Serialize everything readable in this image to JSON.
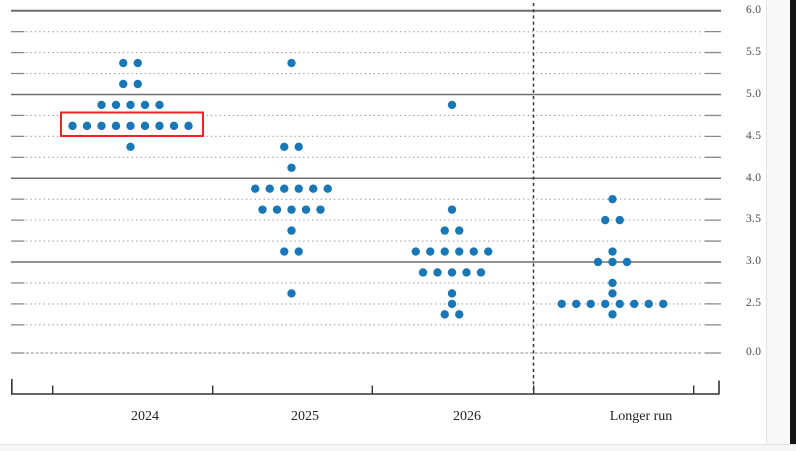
{
  "chart_data": {
    "type": "scatter",
    "subtype": "dot-plot",
    "title": "",
    "x_categories": [
      "2024",
      "2025",
      "2026",
      "Longer run"
    ],
    "y_axis": {
      "tick_labels": [
        "6.0",
        "5.5",
        "5.0",
        "4.5",
        "4.0",
        "3.5",
        "3.0",
        "2.5",
        "0.0"
      ],
      "tick_values": [
        6.0,
        5.5,
        5.0,
        4.5,
        4.0,
        3.5,
        3.0,
        2.5,
        0.0
      ],
      "gridline_top": 6.0,
      "gridline_bottom": 2.25,
      "gridline_step": 0.25,
      "solid_gridlines_at": [
        6.0,
        5.0,
        4.0,
        3.0
      ],
      "broken_axis_extra_line": 0.0,
      "grid": "on",
      "labels_position": "right"
    },
    "columns": [
      {
        "label": "2024",
        "total_dots": 19,
        "dots": [
          {
            "rate": 5.375,
            "count": 2
          },
          {
            "rate": 5.125,
            "count": 2
          },
          {
            "rate": 4.875,
            "count": 5
          },
          {
            "rate": 4.625,
            "count": 9
          },
          {
            "rate": 4.375,
            "count": 1
          }
        ]
      },
      {
        "label": "2025",
        "total_dots": 19,
        "dots": [
          {
            "rate": 5.375,
            "count": 1
          },
          {
            "rate": 4.375,
            "count": 2
          },
          {
            "rate": 4.125,
            "count": 1
          },
          {
            "rate": 3.875,
            "count": 6
          },
          {
            "rate": 3.625,
            "count": 5
          },
          {
            "rate": 3.375,
            "count": 1
          },
          {
            "rate": 3.125,
            "count": 2
          },
          {
            "rate": 2.625,
            "count": 1
          }
        ]
      },
      {
        "label": "2026",
        "total_dots": 19,
        "dots": [
          {
            "rate": 4.875,
            "count": 1
          },
          {
            "rate": 3.625,
            "count": 1
          },
          {
            "rate": 3.375,
            "count": 2
          },
          {
            "rate": 3.125,
            "count": 6
          },
          {
            "rate": 2.875,
            "count": 5
          },
          {
            "rate": 2.625,
            "count": 1
          },
          {
            "rate": 2.5,
            "count": 1
          },
          {
            "rate": 2.375,
            "count": 2
          }
        ]
      },
      {
        "label": "Longer run",
        "total_dots": 18,
        "dots": [
          {
            "rate": 3.75,
            "count": 1
          },
          {
            "rate": 3.5,
            "count": 2
          },
          {
            "rate": 3.125,
            "count": 1
          },
          {
            "rate": 3.0,
            "count": 3
          },
          {
            "rate": 2.75,
            "count": 1
          },
          {
            "rate": 2.625,
            "count": 1
          },
          {
            "rate": 2.5,
            "count": 8
          },
          {
            "rate": 2.375,
            "count": 1
          }
        ]
      }
    ],
    "highlight": {
      "column": "2024",
      "rate": 4.625,
      "shape": "rectangle",
      "note": "red box around the nine 4.625 dots"
    },
    "divider": {
      "after_column": "2026",
      "style": "vertical-dashed-line"
    },
    "colors": {
      "dot": "#1a77b5",
      "highlight_box": "#ee2423",
      "solid_gridline": "#6f6f6f",
      "dotted_gridline": "#9a9a9a",
      "axis": "#333333",
      "y_label_text": "#4a4a4a",
      "x_label_text": "#222222"
    }
  }
}
